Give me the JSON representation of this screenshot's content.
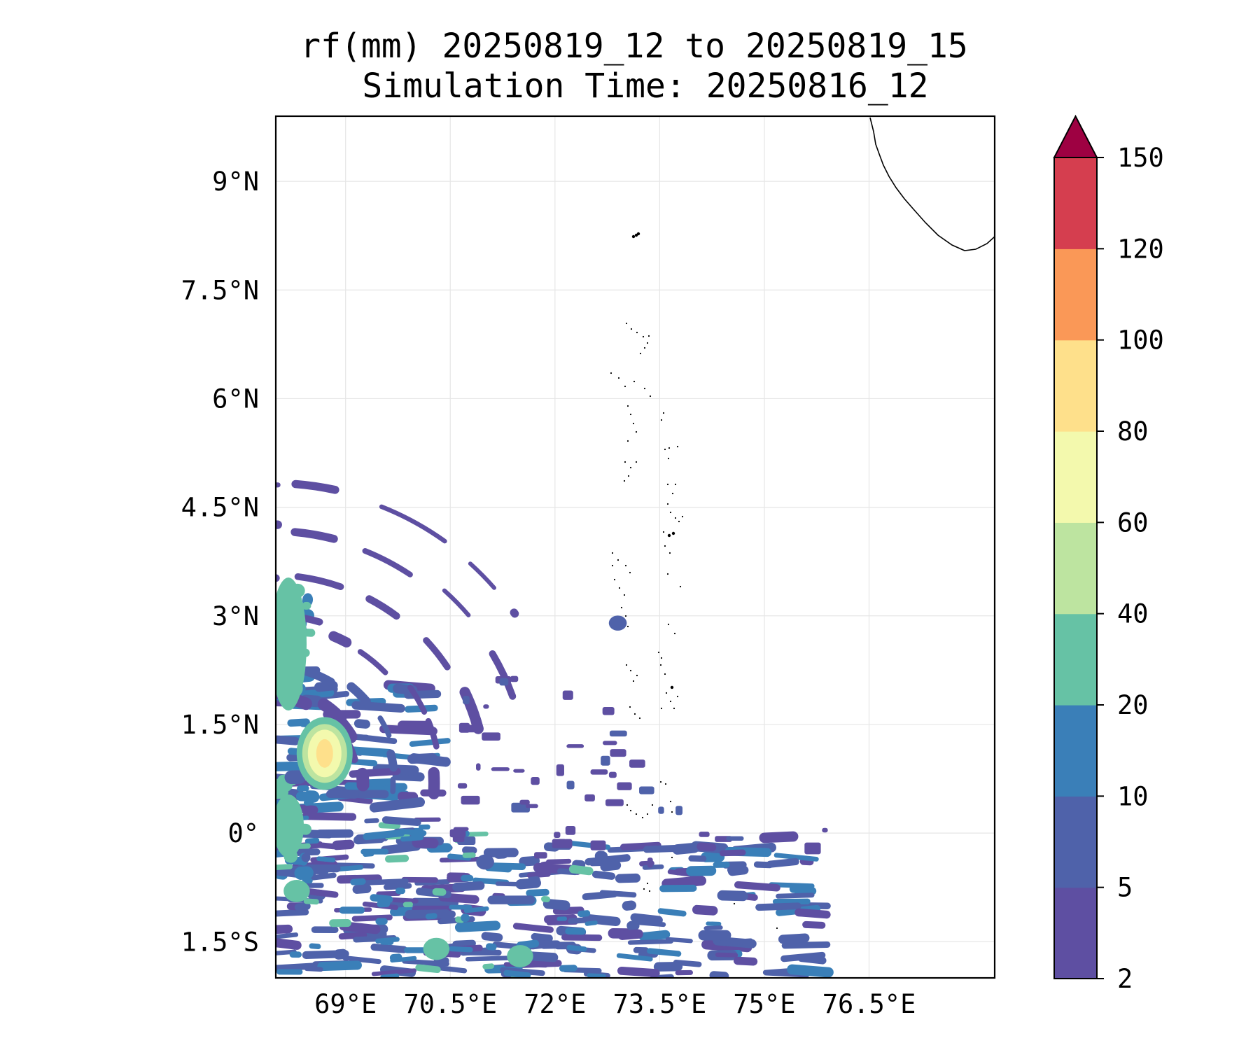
{
  "chart_data": {
    "type": "heatmap",
    "title": "rf(mm) 20250819_12 to 20250819_15",
    "subtitle": "Simulation Time: 20250816_12",
    "xlabel": "",
    "ylabel": "",
    "xlim": [
      68.0,
      78.3
    ],
    "ylim": [
      -2.0,
      9.9
    ],
    "x_ticks": [
      69,
      70.5,
      72,
      73.5,
      75,
      76.5
    ],
    "x_tick_labels": [
      "69°E",
      "70.5°E",
      "72°E",
      "73.5°E",
      "75°E",
      "76.5°E"
    ],
    "y_ticks": [
      9,
      7.5,
      6,
      4.5,
      3,
      1.5,
      0,
      -1.5
    ],
    "y_tick_labels": [
      "9°N",
      "7.5°N",
      "6°N",
      "4.5°N",
      "3°N",
      "1.5°N",
      "0°",
      "1.5°S"
    ],
    "grid": true,
    "colorbar": {
      "placement": "right",
      "extend": "max",
      "levels": [
        2,
        5,
        10,
        20,
        40,
        60,
        80,
        100,
        120,
        150
      ],
      "level_labels": [
        "2",
        "5",
        "10",
        "20",
        "40",
        "60",
        "80",
        "100",
        "120",
        "150"
      ],
      "colors": [
        "#5e4fa2",
        "#4f62aa",
        "#3a7fb8",
        "#66c2a5",
        "#bde4a0",
        "#f3f9ad",
        "#fee08b",
        "#fa9857",
        "#d53e4f",
        "#9e0142"
      ]
    },
    "rain_features": [
      {
        "lon": 68.7,
        "lat": 1.1,
        "value": 45
      },
      {
        "lon": 68.2,
        "lat": 2.0,
        "value": 25
      },
      {
        "lon": 68.3,
        "lat": -0.8,
        "value": 25
      },
      {
        "lon": 70.3,
        "lat": -1.6,
        "value": 25
      },
      {
        "lon": 71.5,
        "lat": -1.7,
        "value": 25
      },
      {
        "lon": 72.9,
        "lat": 2.9,
        "value": 8
      },
      {
        "lon": 71.0,
        "lat": -0.4,
        "value": 8
      }
    ]
  }
}
